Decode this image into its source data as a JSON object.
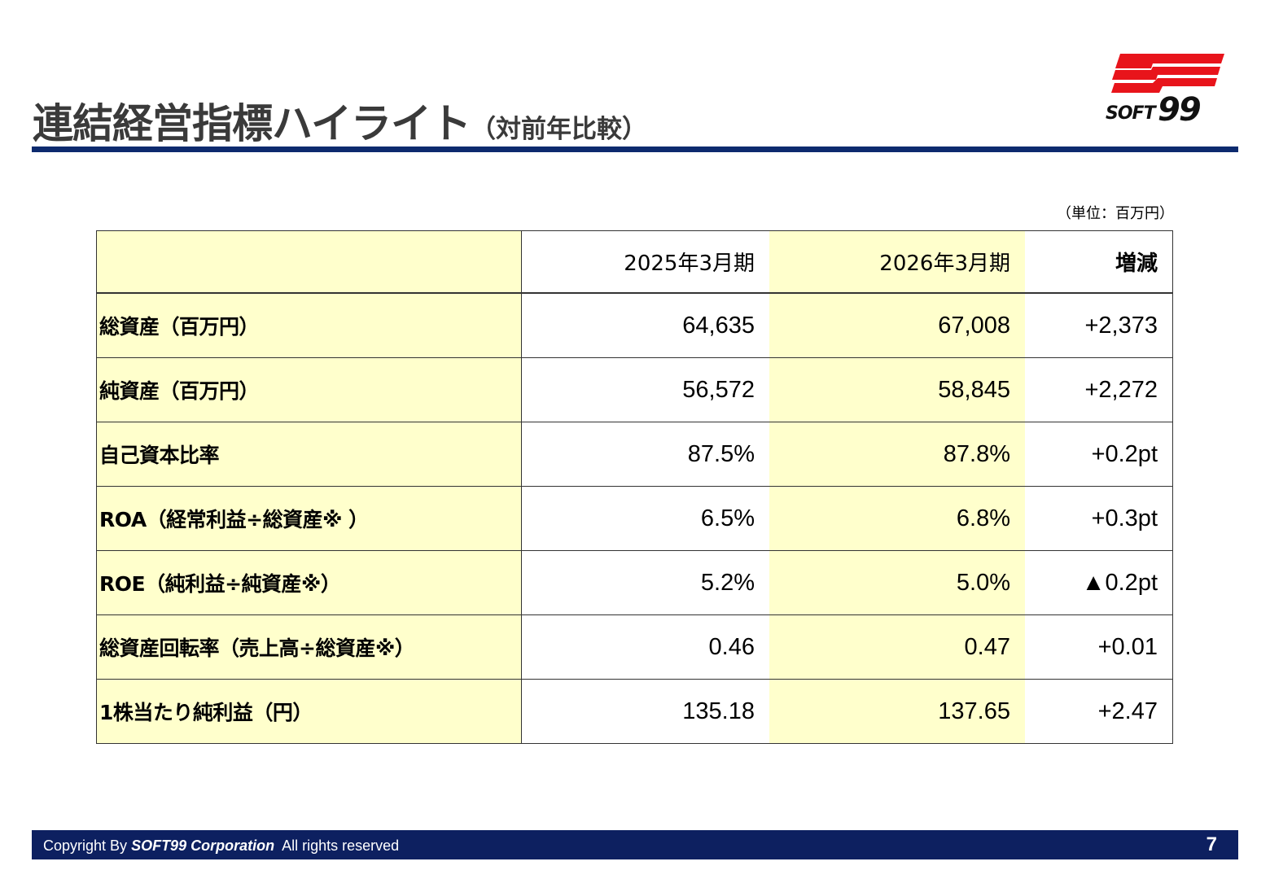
{
  "header": {
    "title_main": "連結経営指標ハイライト",
    "title_sub": "（対前年比較）",
    "logo_text": "SOFT99",
    "brand_red": "#e8141b",
    "rule_color": "#0d2a6e"
  },
  "unit_note": "（単位：百万円）",
  "table": {
    "columns": [
      "",
      "2025年3月期",
      "2026年3月期",
      "増減"
    ],
    "rows": [
      {
        "label": "総資産（百万円）",
        "fy2025": "64,635",
        "fy2026": "67,008",
        "change": "+2,373"
      },
      {
        "label": "純資産（百万円）",
        "fy2025": "56,572",
        "fy2026": "58,845",
        "change": "+2,272"
      },
      {
        "label": "自己資本比率",
        "fy2025": "87.5%",
        "fy2026": "87.8%",
        "change": "+0.2pt"
      },
      {
        "label": "ROA（経常利益÷総資産※ ）",
        "fy2025": "6.5%",
        "fy2026": "6.8%",
        "change": "+0.3pt"
      },
      {
        "label": "ROE（純利益÷純資産※）",
        "fy2025": "5.2%",
        "fy2026": "5.0%",
        "change": "▲0.2pt"
      },
      {
        "label": "総資産回転率（売上高÷総資産※）",
        "fy2025": "0.46",
        "fy2026": "0.47",
        "change": "+0.01"
      },
      {
        "label": "1株当たり純利益（円）",
        "fy2025": "135.18",
        "fy2026": "137.65",
        "change": "+2.47"
      }
    ]
  },
  "footer": {
    "copyright_prefix": "Copyright By",
    "company": "SOFT99 Corporation",
    "rights": "All rights reserved",
    "page_number": "7"
  }
}
